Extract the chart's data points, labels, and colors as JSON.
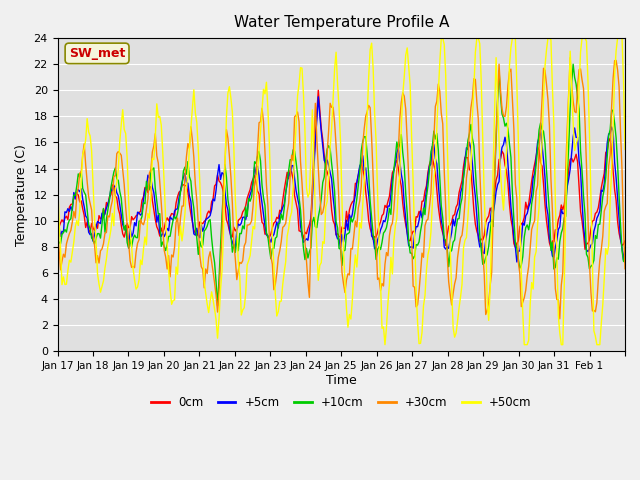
{
  "title": "Water Temperature Profile A",
  "xlabel": "Time",
  "ylabel": "Temperature (C)",
  "ylim": [
    0,
    24
  ],
  "yticks": [
    0,
    2,
    4,
    6,
    8,
    10,
    12,
    14,
    16,
    18,
    20,
    22,
    24
  ],
  "xtick_positions": [
    0,
    1,
    2,
    3,
    4,
    5,
    6,
    7,
    8,
    9,
    10,
    11,
    12,
    13,
    14,
    15,
    16
  ],
  "xtick_labels": [
    "Jan 17",
    "Jan 18",
    "Jan 19",
    "Jan 20",
    "Jan 21",
    "Jan 22",
    "Jan 23",
    "Jan 24",
    "Jan 25",
    "Jan 26",
    "Jan 27",
    "Jan 28",
    "Jan 29",
    "Jan 30",
    "Jan 31",
    "Feb 1",
    ""
  ],
  "legend_labels": [
    "0cm",
    "+5cm",
    "+10cm",
    "+30cm",
    "+50cm"
  ],
  "legend_colors": [
    "#ff0000",
    "#0000ff",
    "#00cc00",
    "#ff8800",
    "#ffff00"
  ],
  "line_width": 1.0,
  "annotation_text": "SW_met",
  "annotation_color": "#cc0000",
  "n_points_per_day": 24,
  "n_days": 16
}
